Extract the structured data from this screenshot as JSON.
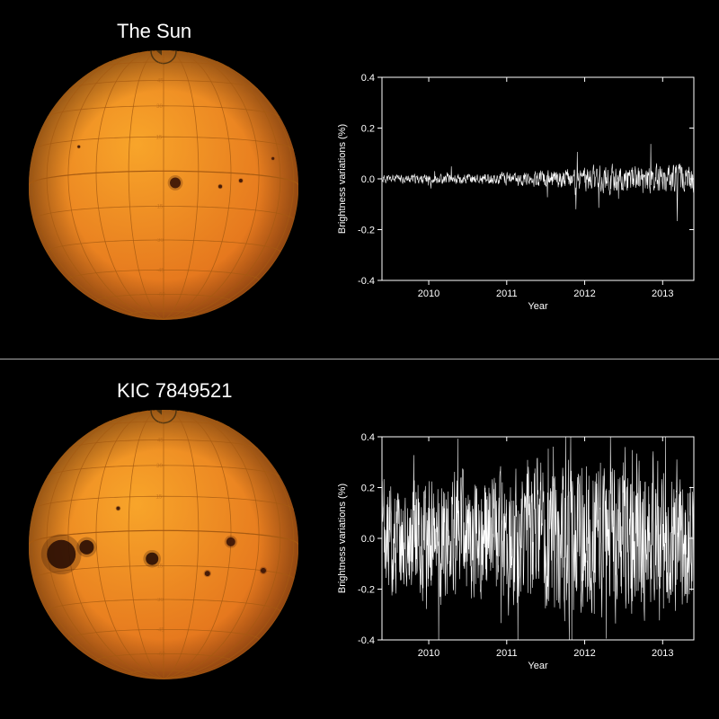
{
  "background_color": "#000000",
  "divider_color": "#aaaaaa",
  "panels": {
    "sun": {
      "title": "The Sun",
      "title_fontsize": 22,
      "sphere": {
        "radius": 150,
        "fill": [
          "#f8a52a",
          "#e06a1a"
        ],
        "gridline_color": "#a55a12",
        "axis_tilt_deg": -6,
        "lat_lines": [
          -75,
          -60,
          -45,
          -30,
          -15,
          0,
          15,
          30,
          45,
          60,
          75
        ],
        "lon_count": 12,
        "spots": [
          {
            "lat": -5,
            "lon": 5,
            "r": 6,
            "color": "#3a1406"
          },
          {
            "lat": -6,
            "lon": 25,
            "r": 2,
            "color": "#3a1406"
          },
          {
            "lat": -3,
            "lon": 35,
            "r": 2,
            "color": "#3a1406"
          },
          {
            "lat": 12,
            "lon": -40,
            "r": 1.5,
            "color": "#3a1406"
          },
          {
            "lat": 8,
            "lon": 55,
            "r": 1.5,
            "color": "#3a1406"
          }
        ]
      },
      "chart": {
        "type": "line",
        "xlabel": "Year",
        "ylabel": "Brightness variations (%)",
        "label_fontsize": 11,
        "xlim": [
          2009.4,
          2013.4
        ],
        "ylim": [
          -0.4,
          0.4
        ],
        "xtick_labels": [
          "2010",
          "2011",
          "2012",
          "2013"
        ],
        "xtick_values": [
          2010,
          2011,
          2012,
          2013
        ],
        "ytick_values": [
          -0.4,
          -0.2,
          0.0,
          0.2,
          0.4
        ],
        "ytick_labels": [
          "-0.4",
          "-0.2",
          "0.0",
          "0.2",
          "0.4"
        ],
        "line_color": "#ffffff",
        "line_width": 0.6,
        "axis_color": "#ffffff",
        "tick_length": 5,
        "background_color": "#000000",
        "noise_amplitude": 0.035,
        "noise_envelope": [
          {
            "x": 2009.4,
            "a": 0.02
          },
          {
            "x": 2010.2,
            "a": 0.025
          },
          {
            "x": 2011.0,
            "a": 0.03
          },
          {
            "x": 2011.8,
            "a": 0.05
          },
          {
            "x": 2012.3,
            "a": 0.07
          },
          {
            "x": 2012.8,
            "a": 0.06
          },
          {
            "x": 2013.2,
            "a": 0.08
          },
          {
            "x": 2013.4,
            "a": 0.07
          }
        ],
        "noise_points": 900,
        "seed": 11
      }
    },
    "kic": {
      "title": "KIC 7849521",
      "title_fontsize": 22,
      "sphere": {
        "radius": 150,
        "fill": [
          "#f8a52a",
          "#e06a1a"
        ],
        "gridline_color": "#a55a12",
        "axis_tilt_deg": -6,
        "lat_lines": [
          -75,
          -60,
          -45,
          -30,
          -15,
          0,
          15,
          30,
          45,
          60,
          75
        ],
        "lon_count": 12,
        "spots": [
          {
            "lat": -8,
            "lon": -50,
            "r": 16,
            "color": "#2b0e04"
          },
          {
            "lat": -6,
            "lon": -35,
            "r": 8,
            "color": "#2b0e04"
          },
          {
            "lat": -12,
            "lon": -5,
            "r": 7,
            "color": "#2b0e04"
          },
          {
            "lat": -4,
            "lon": 30,
            "r": 5,
            "color": "#3a1406"
          },
          {
            "lat": -18,
            "lon": 20,
            "r": 3,
            "color": "#3a1406"
          },
          {
            "lat": 10,
            "lon": -20,
            "r": 2,
            "color": "#3a1406"
          },
          {
            "lat": -15,
            "lon": 50,
            "r": 3,
            "color": "#3a1406"
          }
        ]
      },
      "chart": {
        "type": "line",
        "xlabel": "Year",
        "ylabel": "Brightness variations (%)",
        "label_fontsize": 11,
        "xlim": [
          2009.4,
          2013.4
        ],
        "ylim": [
          -0.4,
          0.4
        ],
        "xtick_labels": [
          "2010",
          "2011",
          "2012",
          "2013"
        ],
        "xtick_values": [
          2010,
          2011,
          2012,
          2013
        ],
        "ytick_values": [
          -0.4,
          -0.2,
          0.0,
          0.2,
          0.4
        ],
        "ytick_labels": [
          "-0.4",
          "-0.2",
          "0.0",
          "0.2",
          "0.4"
        ],
        "line_color": "#ffffff",
        "line_width": 0.6,
        "axis_color": "#ffffff",
        "tick_length": 5,
        "background_color": "#000000",
        "noise_amplitude": 0.3,
        "noise_envelope": [
          {
            "x": 2009.4,
            "a": 0.28
          },
          {
            "x": 2010.0,
            "a": 0.32
          },
          {
            "x": 2010.6,
            "a": 0.3
          },
          {
            "x": 2011.2,
            "a": 0.35
          },
          {
            "x": 2011.8,
            "a": 0.38
          },
          {
            "x": 2012.4,
            "a": 0.4
          },
          {
            "x": 2013.0,
            "a": 0.38
          },
          {
            "x": 2013.4,
            "a": 0.36
          }
        ],
        "noise_points": 1100,
        "seed": 42
      }
    }
  }
}
